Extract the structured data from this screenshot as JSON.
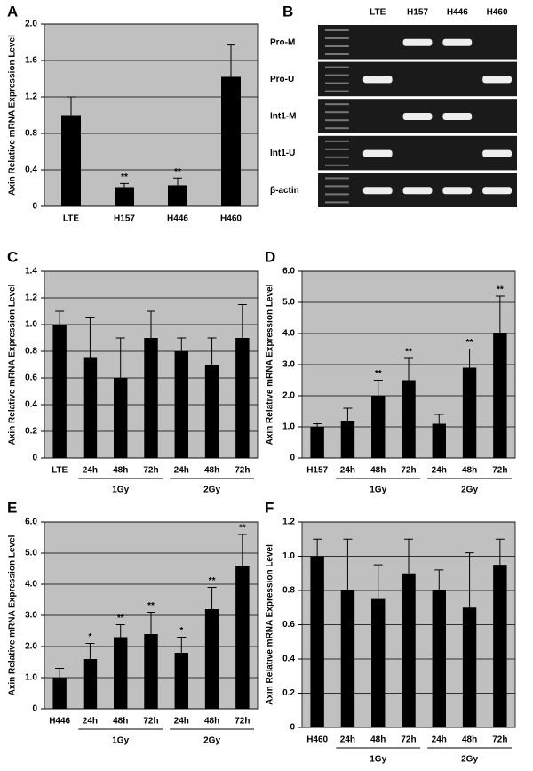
{
  "chart_data": [
    {
      "type": "bar",
      "label": "A",
      "ylabel": "Axin Relative  mRNA Expression Level",
      "categories": [
        "LTE",
        "H157",
        "H446",
        "H460"
      ],
      "values": [
        1.0,
        0.21,
        0.23,
        1.42
      ],
      "errors": [
        0.2,
        0.04,
        0.08,
        0.35
      ],
      "annotations": [
        null,
        "**",
        "**",
        null
      ],
      "groups": [],
      "ylim": [
        0,
        2
      ],
      "yticks": [
        0,
        0.4,
        0.8,
        1.2,
        1.6,
        {
          "value": 2,
          "label": "2.0"
        }
      ],
      "grid": true,
      "color": "#000000",
      "background": "#c0c0c0"
    },
    {
      "type": "gel",
      "label": "B",
      "lanes": [
        "LTE",
        "H157",
        "H446",
        "H460"
      ],
      "rows": [
        "Pro-M",
        "Pro-U",
        "Int1-M",
        "Int1-U",
        "β-actin"
      ]
    },
    {
      "type": "bar",
      "label": "C",
      "ylabel": "Axin Relative  mRNA Expression Level",
      "categories": [
        "LTE",
        "24h",
        "48h",
        "72h",
        "24h",
        "48h",
        "72h"
      ],
      "values": [
        1.0,
        0.75,
        0.6,
        0.9,
        0.8,
        0.7,
        0.9
      ],
      "errors": [
        0.1,
        0.3,
        0.3,
        0.2,
        0.1,
        0.2,
        0.25
      ],
      "annotations": [
        null,
        null,
        null,
        null,
        null,
        null,
        null
      ],
      "groups": [
        "1Gy",
        "2Gy"
      ],
      "ylim": [
        0,
        1.4
      ],
      "yticks": [
        0,
        0.2,
        0.4,
        0.6,
        0.8,
        {
          "value": 1,
          "label": "1.0"
        },
        1.2,
        1.4
      ],
      "grid": true,
      "color": "#000000",
      "background": "#c0c0c0"
    },
    {
      "type": "bar",
      "label": "D",
      "ylabel": "Axin Relative  mRNA Expression Level",
      "categories": [
        "H157",
        "24h",
        "48h",
        "72h",
        "24h",
        "48h",
        "72h"
      ],
      "values": [
        1.0,
        1.2,
        2.0,
        2.5,
        1.1,
        2.9,
        4.0
      ],
      "errors": [
        0.1,
        0.4,
        0.5,
        0.7,
        0.3,
        0.6,
        1.2
      ],
      "annotations": [
        null,
        null,
        "**",
        "**",
        null,
        "**",
        "**"
      ],
      "groups": [
        "1Gy",
        "2Gy"
      ],
      "ylim": [
        0,
        6
      ],
      "yticks": [
        0,
        {
          "value": 1,
          "label": "1.0"
        },
        {
          "value": 2,
          "label": "2.0"
        },
        {
          "value": 3,
          "label": "3.0"
        },
        {
          "value": 4,
          "label": "4.0"
        },
        {
          "value": 5,
          "label": "5.0"
        },
        {
          "value": 6,
          "label": "6.0"
        }
      ],
      "grid": true,
      "color": "#000000",
      "background": "#c0c0c0"
    },
    {
      "type": "bar",
      "label": "E",
      "ylabel": "Axin Relative  mRNA Expression Level",
      "categories": [
        "H446",
        "24h",
        "48h",
        "72h",
        "24h",
        "48h",
        "72h"
      ],
      "values": [
        1.0,
        1.6,
        2.3,
        2.4,
        1.8,
        3.2,
        4.6
      ],
      "errors": [
        0.3,
        0.5,
        0.4,
        0.7,
        0.5,
        0.7,
        1.0
      ],
      "annotations": [
        null,
        "*",
        "**",
        "**",
        "*",
        "**",
        "**"
      ],
      "groups": [
        "1Gy",
        "2Gy"
      ],
      "ylim": [
        0,
        6
      ],
      "yticks": [
        0,
        {
          "value": 1,
          "label": "1.0"
        },
        {
          "value": 2,
          "label": "2.0"
        },
        {
          "value": 3,
          "label": "3.0"
        },
        {
          "value": 4,
          "label": "4.0"
        },
        {
          "value": 5,
          "label": "5.0"
        },
        {
          "value": 6,
          "label": "6.0"
        }
      ],
      "grid": true,
      "color": "#000000",
      "background": "#c0c0c0"
    },
    {
      "type": "bar",
      "label": "F",
      "ylabel": "Axin Relative  mRNA Expression Level",
      "categories": [
        "H460",
        "24h",
        "48h",
        "72h",
        "24h",
        "48h",
        "72h"
      ],
      "values": [
        1.0,
        0.8,
        0.75,
        0.9,
        0.8,
        0.7,
        0.95
      ],
      "errors": [
        0.1,
        0.3,
        0.2,
        0.2,
        0.12,
        0.32,
        0.15
      ],
      "annotations": [
        null,
        null,
        null,
        null,
        null,
        null,
        null
      ],
      "groups": [
        "1Gy",
        "2Gy"
      ],
      "ylim": [
        0,
        1.2
      ],
      "yticks": [
        0,
        0.2,
        0.4,
        0.6,
        0.8,
        {
          "value": 1,
          "label": "1.0"
        },
        1.2
      ],
      "grid": true,
      "color": "#000000",
      "background": "#c0c0c0"
    }
  ]
}
